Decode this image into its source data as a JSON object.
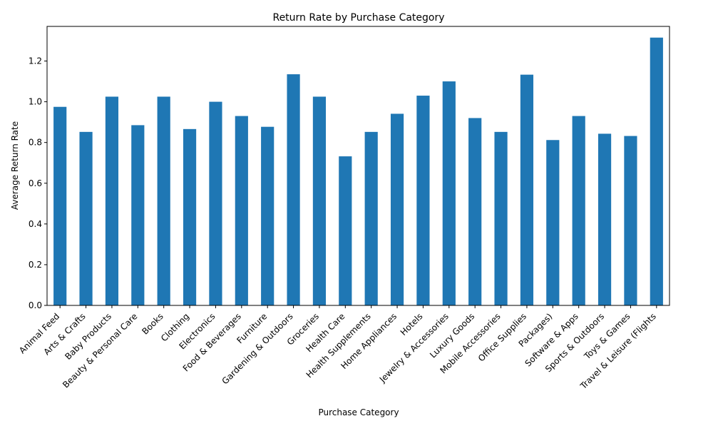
{
  "chart_data": {
    "type": "bar",
    "title": "Return Rate by Purchase Category",
    "xlabel": "Purchase Category",
    "ylabel": "Average Return Rate",
    "ylim": [
      0,
      1.37
    ],
    "yticks": [
      "0.0",
      "0.2",
      "0.4",
      "0.6",
      "0.8",
      "1.0",
      "1.2"
    ],
    "yticks_values": [
      0,
      0.2,
      0.4,
      0.6,
      0.8,
      1.0,
      1.2
    ],
    "grid": false,
    "legend": "none",
    "bar_color": "#1f77b4",
    "categories": [
      "Animal Feed",
      "Arts & Crafts",
      "Baby Products",
      "Beauty & Personal Care",
      "Books",
      "Clothing",
      "Electronics",
      "Food & Beverages",
      "Furniture",
      "Gardening & Outdoors",
      "Groceries",
      "Health Care",
      "Health Supplements",
      "Home Appliances",
      "Hotels",
      "Jewelry & Accessories",
      "Luxury Goods",
      "Mobile Accessories",
      "Office Supplies",
      "Packages)",
      "Software & Apps",
      "Sports & Outdoors",
      "Toys & Games",
      "Travel & Leisure (Flights"
    ],
    "values": [
      0.975,
      0.852,
      1.025,
      0.885,
      1.025,
      0.866,
      1.0,
      0.93,
      0.877,
      1.135,
      1.025,
      0.732,
      0.852,
      0.941,
      1.03,
      1.1,
      0.92,
      0.852,
      1.133,
      0.812,
      0.93,
      0.843,
      0.832,
      1.315
    ]
  }
}
